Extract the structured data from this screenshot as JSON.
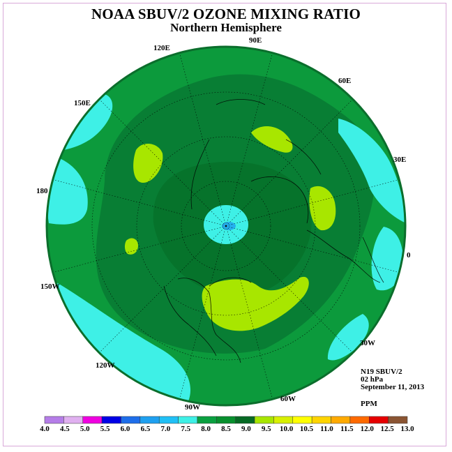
{
  "title": "NOAA SBUV/2 OZONE MIXING RATIO",
  "subtitle": "Northern Hemisphere",
  "info": {
    "satellite": "N19 SBUV/2",
    "level": "02 hPa",
    "date": "September 11, 2013",
    "units": "PPM"
  },
  "longitude_labels": [
    {
      "id": "90e",
      "text": "90E"
    },
    {
      "id": "60e",
      "text": "60E"
    },
    {
      "id": "30e",
      "text": "30E"
    },
    {
      "id": "0",
      "text": "0"
    },
    {
      "id": "30w",
      "text": "30W"
    },
    {
      "id": "60w",
      "text": "60W"
    },
    {
      "id": "90w",
      "text": "90W"
    },
    {
      "id": "120w",
      "text": "120W"
    },
    {
      "id": "150w",
      "text": "150W"
    },
    {
      "id": "180",
      "text": "180"
    },
    {
      "id": "150e",
      "text": "150E"
    },
    {
      "id": "120e",
      "text": "120E"
    }
  ],
  "colorbar": {
    "labels": [
      "4.0",
      "4.5",
      "5.0",
      "5.5",
      "6.0",
      "6.5",
      "7.0",
      "7.5",
      "8.0",
      "8.5",
      "9.0",
      "9.5",
      "10.0",
      "10.5",
      "11.0",
      "11.5",
      "12.0",
      "12.5",
      "13.0"
    ],
    "colors": [
      "#b57de8",
      "#e0b0f0",
      "#f000e0",
      "#0000e6",
      "#1e6eea",
      "#1fa0f0",
      "#20c0f6",
      "#3ef0e6",
      "#0aa040",
      "#08902e",
      "#066a24",
      "#a8e600",
      "#d8f000",
      "#ffff00",
      "#ffd400",
      "#ffaa00",
      "#ff6a00",
      "#e60000",
      "#8b5533"
    ]
  },
  "map_colors": {
    "ocean_fill": "#0c9a3c",
    "band_8_5_to_9": "#087e34",
    "band_9_plus": "#a8e600",
    "band_7_5_to_8": "#3ef0e6",
    "center_low": "#1fa0f0",
    "rim": "#0b6e2c"
  }
}
